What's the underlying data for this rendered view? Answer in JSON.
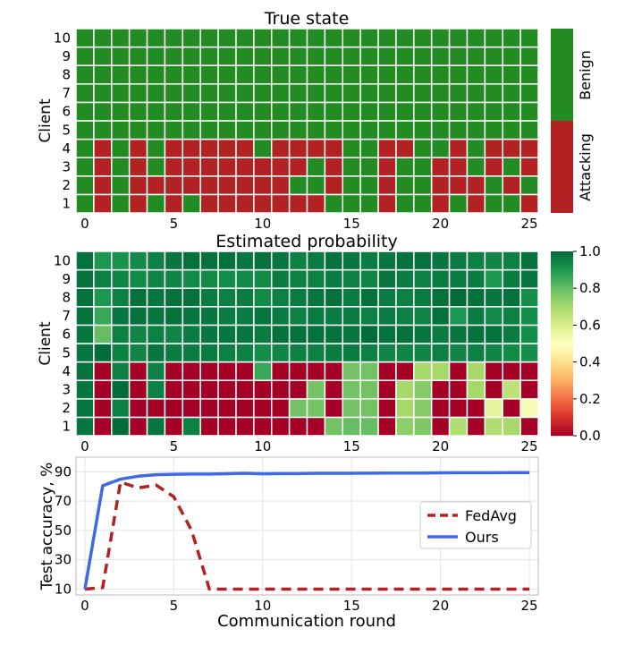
{
  "chart_data": [
    {
      "type": "heatmap",
      "title": "True state",
      "ylabel": "Client",
      "x_ticks": [
        0,
        5,
        10,
        15,
        20,
        25
      ],
      "rows": [
        1,
        2,
        3,
        4,
        5,
        6,
        7,
        8,
        9,
        10
      ],
      "columns": [
        0,
        1,
        2,
        3,
        4,
        5,
        6,
        7,
        8,
        9,
        10,
        11,
        12,
        13,
        14,
        15,
        16,
        17,
        18,
        19,
        20,
        21,
        22,
        23,
        24,
        25
      ],
      "colorbar": {
        "labels": [
          "Benign",
          "Attacking"
        ],
        "colors": {
          "Benign": "#228b22",
          "Attacking": "#b22222"
        }
      },
      "values_note_legend": {
        "1": "Benign",
        "0": "Attacking"
      },
      "values": {
        "1": [
          1,
          0,
          1,
          0,
          1,
          0,
          1,
          0,
          0,
          0,
          0,
          0,
          0,
          0,
          1,
          1,
          1,
          0,
          1,
          1,
          0,
          1,
          0,
          1,
          1,
          0
        ],
        "2": [
          1,
          0,
          1,
          0,
          0,
          0,
          0,
          0,
          0,
          0,
          0,
          0,
          1,
          1,
          0,
          1,
          1,
          0,
          1,
          1,
          0,
          0,
          0,
          1,
          0,
          1
        ],
        "3": [
          1,
          0,
          1,
          0,
          1,
          0,
          0,
          0,
          0,
          0,
          0,
          0,
          0,
          1,
          0,
          1,
          1,
          0,
          1,
          1,
          0,
          0,
          1,
          0,
          1,
          0
        ],
        "4": [
          1,
          0,
          1,
          0,
          1,
          0,
          0,
          0,
          0,
          0,
          1,
          0,
          0,
          0,
          0,
          1,
          1,
          0,
          0,
          1,
          1,
          0,
          1,
          0,
          0,
          0
        ],
        "5": [
          1,
          1,
          1,
          1,
          1,
          1,
          1,
          1,
          1,
          1,
          1,
          1,
          1,
          1,
          1,
          1,
          1,
          1,
          1,
          1,
          1,
          1,
          1,
          1,
          1,
          1
        ],
        "6": [
          1,
          1,
          1,
          1,
          1,
          1,
          1,
          1,
          1,
          1,
          1,
          1,
          1,
          1,
          1,
          1,
          1,
          1,
          1,
          1,
          1,
          1,
          1,
          1,
          1,
          1
        ],
        "7": [
          1,
          1,
          1,
          1,
          1,
          1,
          1,
          1,
          1,
          1,
          1,
          1,
          1,
          1,
          1,
          1,
          1,
          1,
          1,
          1,
          1,
          1,
          1,
          1,
          1,
          1
        ],
        "8": [
          1,
          1,
          1,
          1,
          1,
          1,
          1,
          1,
          1,
          1,
          1,
          1,
          1,
          1,
          1,
          1,
          1,
          1,
          1,
          1,
          1,
          1,
          1,
          1,
          1,
          1
        ],
        "9": [
          1,
          1,
          1,
          1,
          1,
          1,
          1,
          1,
          1,
          1,
          1,
          1,
          1,
          1,
          1,
          1,
          1,
          1,
          1,
          1,
          1,
          1,
          1,
          1,
          1,
          1
        ],
        "10": [
          1,
          1,
          1,
          1,
          1,
          1,
          1,
          1,
          1,
          1,
          1,
          1,
          1,
          1,
          1,
          1,
          1,
          1,
          1,
          1,
          1,
          1,
          1,
          1,
          1,
          1
        ]
      }
    },
    {
      "type": "heatmap",
      "title": "Estimated probability",
      "ylabel": "Client",
      "x_ticks": [
        0,
        5,
        10,
        15,
        20,
        25
      ],
      "rows": [
        1,
        2,
        3,
        4,
        5,
        6,
        7,
        8,
        9,
        10
      ],
      "colormap": "RdYlGn",
      "vmin": 0.0,
      "vmax": 1.0,
      "colorbar_ticks": [
        "0.0",
        "0.2",
        "0.4",
        "0.6",
        "0.8",
        "1.0"
      ],
      "values": {
        "1": [
          0.97,
          0,
          0.99,
          0,
          0.97,
          0,
          0.95,
          0,
          0,
          0,
          0,
          0,
          0,
          0,
          0.78,
          0.8,
          0.8,
          0,
          0.74,
          0.76,
          0,
          0.68,
          0,
          0.68,
          0.7,
          0
        ],
        "2": [
          0.97,
          0,
          0.95,
          0,
          0,
          0,
          0,
          0,
          0,
          0,
          0,
          0,
          0.78,
          0.78,
          0,
          0.78,
          0.78,
          0,
          0.7,
          0.75,
          0,
          0,
          0,
          0.56,
          0,
          0.52
        ],
        "3": [
          0.97,
          0,
          0.99,
          0,
          0.95,
          0,
          0,
          0,
          0,
          0,
          0,
          0,
          0,
          0.78,
          0,
          0.78,
          0.78,
          0,
          0.7,
          0.75,
          0,
          0,
          0.7,
          0,
          0.66,
          0
        ],
        "4": [
          0.98,
          0,
          0.95,
          0,
          0.95,
          0,
          0,
          0,
          0,
          0,
          0.86,
          0,
          0,
          0,
          0,
          0.78,
          0.78,
          0,
          0,
          0.7,
          0.7,
          0,
          0.7,
          0,
          0,
          0
        ],
        "5": [
          0.97,
          0.99,
          0.95,
          0.94,
          0.97,
          0.96,
          0.96,
          0.96,
          0.95,
          0.95,
          0.92,
          0.94,
          0.95,
          0.95,
          0.96,
          0.96,
          0.95,
          0.94,
          0.94,
          0.94,
          0.95,
          0.94,
          0.95,
          0.94,
          0.93,
          0.92
        ],
        "6": [
          0.97,
          0.8,
          0.95,
          0.94,
          0.95,
          0.94,
          0.96,
          0.97,
          0.97,
          0.97,
          0.96,
          0.98,
          0.98,
          0.98,
          0.98,
          0.97,
          0.99,
          0.98,
          0.98,
          0.97,
          0.96,
          0.97,
          0.98,
          0.98,
          0.96,
          0.92
        ],
        "7": [
          0.98,
          0.86,
          0.97,
          0.98,
          0.97,
          0.98,
          0.97,
          0.97,
          0.96,
          0.96,
          0.97,
          0.96,
          0.95,
          0.96,
          0.96,
          0.96,
          0.95,
          0.96,
          0.95,
          0.94,
          0.98,
          0.9,
          0.96,
          0.93,
          0.95,
          0.92
        ],
        "8": [
          0.98,
          0.9,
          0.95,
          0.98,
          0.97,
          0.98,
          0.98,
          0.96,
          0.95,
          0.96,
          0.93,
          0.95,
          0.96,
          0.97,
          0.98,
          0.96,
          0.98,
          0.96,
          0.95,
          0.96,
          0.98,
          0.99,
          0.98,
          0.97,
          0.98,
          0.92
        ],
        "9": [
          0.98,
          0.95,
          0.94,
          0.93,
          0.94,
          0.94,
          0.93,
          0.93,
          0.92,
          0.93,
          0.93,
          0.96,
          0.95,
          0.95,
          0.96,
          0.95,
          0.94,
          0.97,
          0.96,
          0.95,
          0.96,
          0.96,
          0.96,
          0.9,
          0.96,
          0.97
        ],
        "10": [
          0.98,
          0.9,
          0.91,
          0.93,
          0.95,
          0.97,
          0.98,
          0.98,
          0.98,
          0.97,
          0.98,
          0.97,
          0.95,
          0.96,
          0.98,
          0.97,
          0.96,
          0.97,
          0.98,
          0.98,
          0.97,
          0.96,
          0.95,
          0.94,
          0.95,
          0.98
        ]
      }
    },
    {
      "type": "line",
      "xlabel": "Communication round",
      "ylabel": "Test accuracy, %",
      "x_ticks": [
        0,
        5,
        10,
        15,
        20,
        25
      ],
      "y_ticks": [
        10,
        30,
        50,
        70,
        90
      ],
      "xlim": [
        -0.5,
        25.5
      ],
      "ylim": [
        6,
        100
      ],
      "grid": true,
      "legend": "center-right",
      "x": [
        0,
        1,
        2,
        3,
        4,
        5,
        6,
        7,
        8,
        9,
        10,
        11,
        12,
        13,
        14,
        15,
        16,
        17,
        18,
        19,
        20,
        21,
        22,
        23,
        24,
        25
      ],
      "series": [
        {
          "name": "FedAvg",
          "color": "#b22222",
          "style": "dashed",
          "values": [
            10,
            11,
            83,
            79,
            81,
            73,
            50,
            10,
            10,
            10,
            10,
            10,
            10,
            10,
            10,
            10,
            10,
            10,
            10,
            10,
            10,
            10,
            10,
            10,
            10,
            10
          ]
        },
        {
          "name": "Ours",
          "color": "#4169e1",
          "style": "solid",
          "values": [
            10,
            80.5,
            85,
            87,
            88,
            88.3,
            88.5,
            88.5,
            88.7,
            89,
            88.6,
            88.8,
            88.8,
            89,
            89,
            89,
            89.1,
            89.2,
            89.2,
            89.2,
            89.3,
            89.4,
            89.4,
            89.4,
            89.5,
            89.5
          ]
        }
      ]
    }
  ]
}
